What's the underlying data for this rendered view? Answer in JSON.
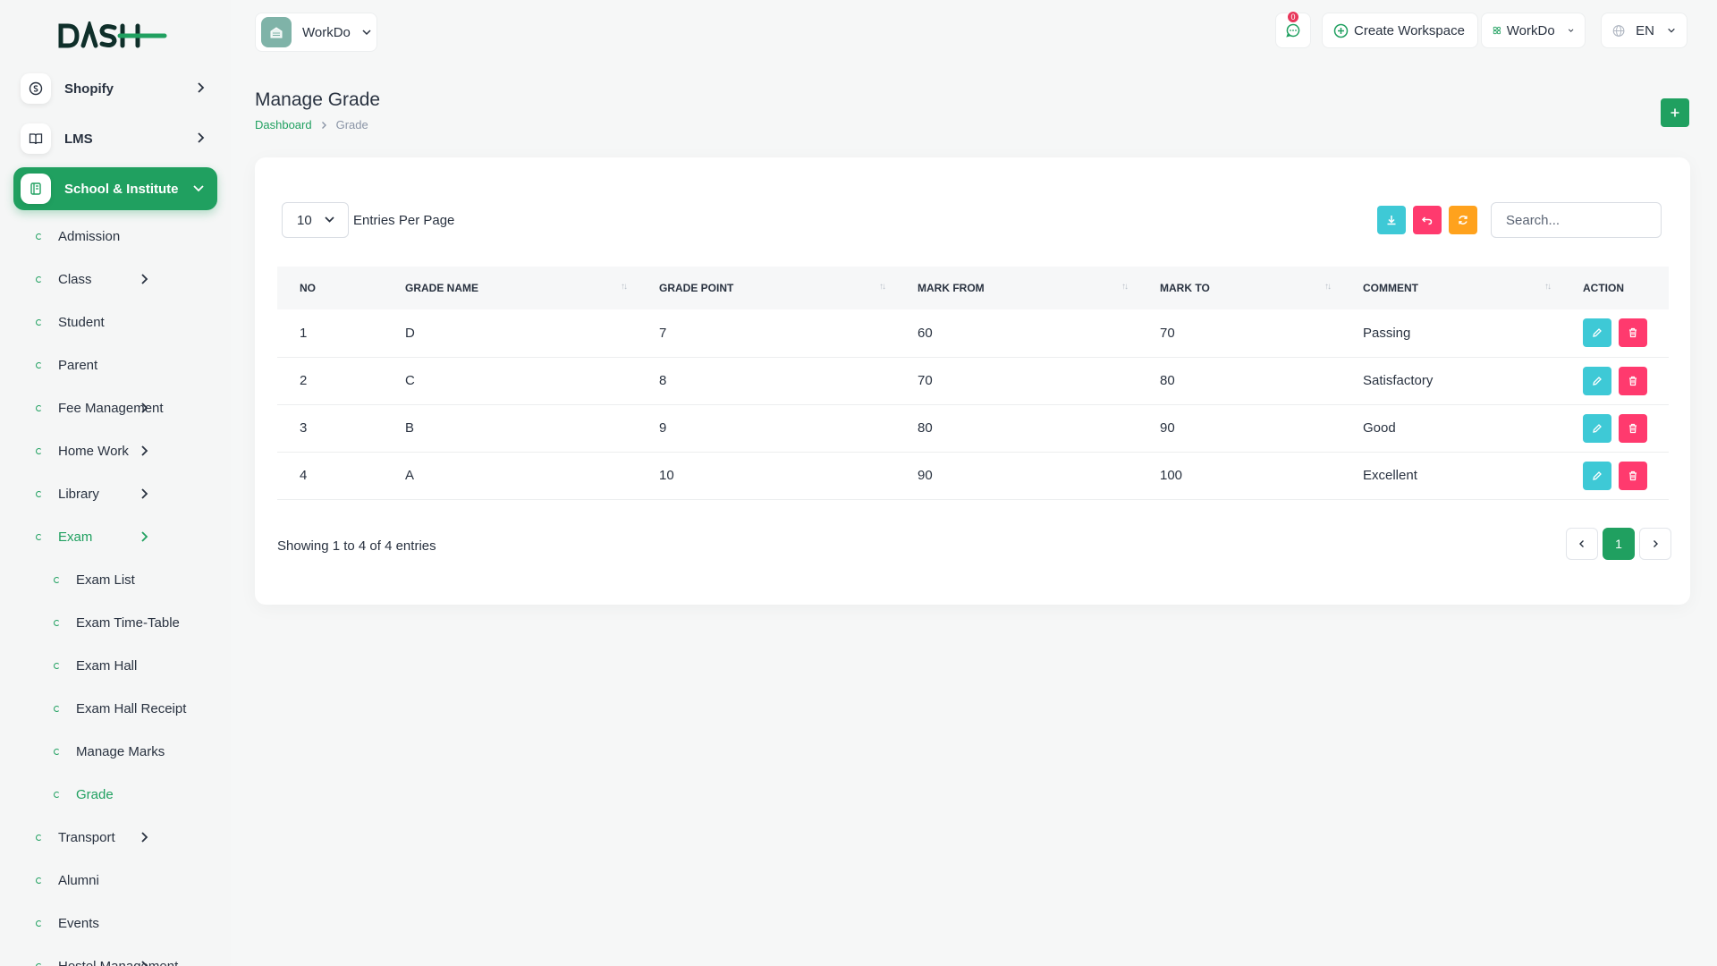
{
  "brand": {
    "logo_text": "DASH",
    "accent": "#20a060"
  },
  "sidebar": {
    "top_items": [
      {
        "label": "Shopify",
        "icon": "shopify-icon"
      },
      {
        "label": "LMS",
        "icon": "book-icon"
      },
      {
        "label": "School & Institute",
        "icon": "school-icon",
        "active": true
      }
    ],
    "sub_items": [
      {
        "label": "Admission"
      },
      {
        "label": "Class",
        "has_children": true
      },
      {
        "label": "Student"
      },
      {
        "label": "Parent"
      },
      {
        "label": "Fee Management",
        "has_children": true
      },
      {
        "label": "Home Work",
        "has_children": true
      },
      {
        "label": "Library",
        "has_children": true
      },
      {
        "label": "Exam",
        "has_children": true,
        "open": true
      },
      {
        "label": "Exam List",
        "child": true
      },
      {
        "label": "Exam Time-Table",
        "child": true
      },
      {
        "label": "Exam Hall",
        "child": true
      },
      {
        "label": "Exam Hall Receipt",
        "child": true
      },
      {
        "label": "Manage Marks",
        "child": true
      },
      {
        "label": "Grade",
        "child": true,
        "active": true
      },
      {
        "label": "Transport",
        "has_children": true
      },
      {
        "label": "Alumni"
      },
      {
        "label": "Events"
      },
      {
        "label": "Hostel Management",
        "has_children": true
      }
    ]
  },
  "topbar": {
    "workspace": "WorkDo",
    "notifications_count": "0",
    "create_workspace": "Create Workspace",
    "workspace_menu": "WorkDo",
    "language": "EN"
  },
  "page": {
    "title": "Manage Grade",
    "breadcrumb": {
      "home": "Dashboard",
      "current": "Grade"
    }
  },
  "table_controls": {
    "entries_value": "10",
    "entries_label": "Entries Per Page",
    "search_placeholder": "Search..."
  },
  "table": {
    "headers": [
      "NO",
      "GRADE NAME",
      "GRADE POINT",
      "MARK FROM",
      "MARK TO",
      "COMMENT",
      "ACTION"
    ],
    "rows": [
      [
        "1",
        "D",
        "7",
        "60",
        "70",
        "Passing"
      ],
      [
        "2",
        "C",
        "8",
        "70",
        "80",
        "Satisfactory"
      ],
      [
        "3",
        "B",
        "9",
        "80",
        "90",
        "Good"
      ],
      [
        "4",
        "A",
        "10",
        "90",
        "100",
        "Excellent"
      ]
    ]
  },
  "footer": {
    "showing": "Showing 1 to 4 of 4 entries",
    "current_page": "1"
  }
}
